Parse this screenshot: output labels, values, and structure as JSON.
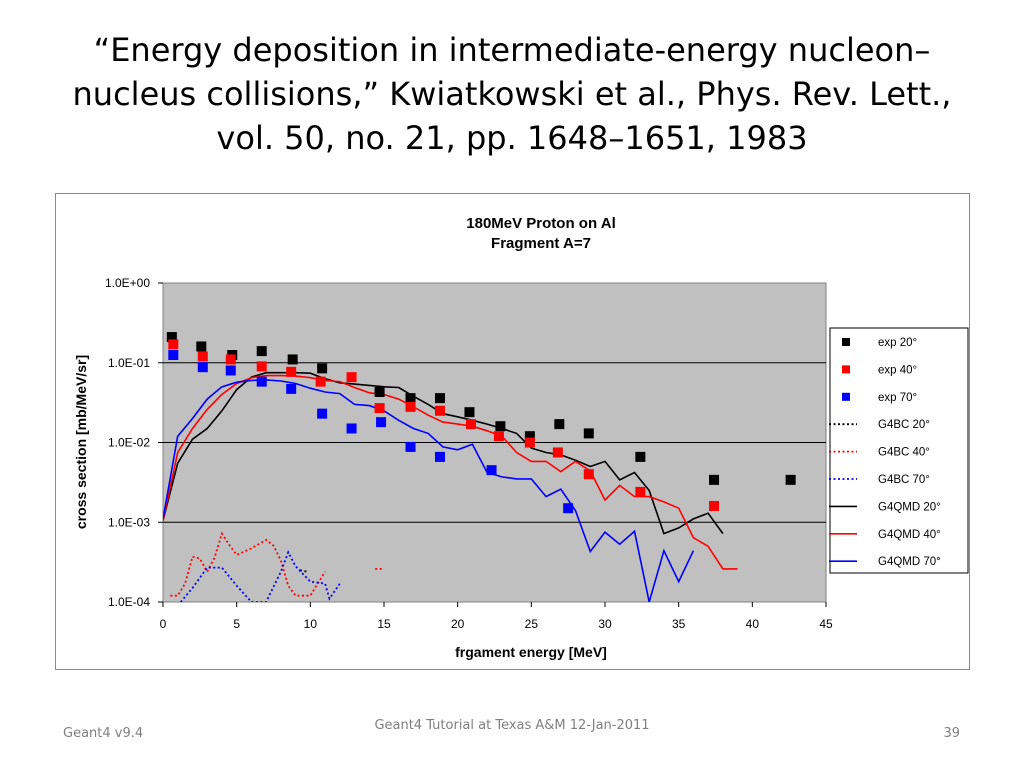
{
  "slide": {
    "title": "“Energy deposition in intermediate-energy nucleon–nucleus collisions,” Kwiatkowski et al., Phys. Rev. Lett., vol. 50, no. 21, pp. 1648–1651, 1983"
  },
  "footer": {
    "left": "Geant4 v9.4",
    "center": "Geant4 Tutorial at Texas A&M 12-Jan-2011",
    "right": "39"
  },
  "chart_data": {
    "type": "scatter",
    "title": "180MeV Proton on Al",
    "subtitle": "Fragment A=7",
    "xlabel": "frgament energy [MeV]",
    "ylabel": "cross section [mb/MeV/sr]",
    "xlim": [
      0,
      45
    ],
    "ylim": [
      0.0001,
      1
    ],
    "y_scale": "log",
    "x_ticks": [
      0,
      5,
      10,
      15,
      20,
      25,
      30,
      35,
      40,
      45
    ],
    "y_ticks": [
      0.0001,
      0.001,
      0.01,
      0.1,
      1
    ],
    "x_tick_labels": [
      "0",
      "5",
      "10",
      "15",
      "20",
      "25",
      "30",
      "35",
      "40",
      "45"
    ],
    "y_tick_labels": [
      "1.0E-04",
      "1.0E-03",
      "1.0E-02",
      "1.0E-01",
      "1.0E+00"
    ],
    "grid": "horizontal",
    "plot_background": "#c0c0c0",
    "legend_position": "right",
    "series": [
      {
        "name": "exp 20°",
        "kind": "marker",
        "color": "#000000",
        "points": [
          [
            0.6,
            0.21
          ],
          [
            2.6,
            0.16
          ],
          [
            4.7,
            0.125
          ],
          [
            6.7,
            0.14
          ],
          [
            8.8,
            0.11
          ],
          [
            10.8,
            0.085
          ],
          [
            14.7,
            0.043
          ],
          [
            16.8,
            0.036
          ],
          [
            18.8,
            0.036
          ],
          [
            20.8,
            0.024
          ],
          [
            22.9,
            0.016
          ],
          [
            24.9,
            0.012
          ],
          [
            26.9,
            0.017
          ],
          [
            28.9,
            0.013
          ],
          [
            32.4,
            0.0066
          ],
          [
            37.4,
            0.0034
          ],
          [
            42.6,
            0.0034
          ]
        ]
      },
      {
        "name": "exp 40°",
        "kind": "marker",
        "color": "#ff0000",
        "points": [
          [
            0.7,
            0.17
          ],
          [
            2.7,
            0.12
          ],
          [
            4.6,
            0.11
          ],
          [
            6.7,
            0.09
          ],
          [
            8.7,
            0.077
          ],
          [
            10.7,
            0.058
          ],
          [
            12.8,
            0.066
          ],
          [
            14.7,
            0.027
          ],
          [
            16.8,
            0.028
          ],
          [
            18.8,
            0.025
          ],
          [
            20.9,
            0.017
          ],
          [
            22.8,
            0.012
          ],
          [
            24.9,
            0.01
          ],
          [
            26.8,
            0.0075
          ],
          [
            28.9,
            0.004
          ],
          [
            32.4,
            0.0024
          ],
          [
            37.4,
            0.0016
          ]
        ]
      },
      {
        "name": "exp 70°",
        "kind": "marker",
        "color": "#0000ff",
        "points": [
          [
            0.7,
            0.125
          ],
          [
            2.7,
            0.088
          ],
          [
            4.6,
            0.08
          ],
          [
            6.7,
            0.058
          ],
          [
            8.7,
            0.047
          ],
          [
            10.8,
            0.023
          ],
          [
            12.8,
            0.015
          ],
          [
            14.8,
            0.018
          ],
          [
            16.8,
            0.0088
          ],
          [
            18.8,
            0.0066
          ],
          [
            22.3,
            0.0045
          ],
          [
            27.5,
            0.0015
          ]
        ]
      },
      {
        "name": "G4BC 20°",
        "kind": "dotted",
        "color": "#000000",
        "points": [
          [
            9.3,
            0.00025
          ],
          [
            9.8,
            0.00024
          ]
        ]
      },
      {
        "name": "G4BC 40°",
        "kind": "dotted",
        "color": "#ff0000",
        "points": [
          [
            0.5,
            0.00012
          ],
          [
            1,
            0.00012
          ],
          [
            1.5,
            0.00017
          ],
          [
            2,
            0.00037
          ],
          [
            2.5,
            0.00035
          ],
          [
            3,
            0.00024
          ],
          [
            3.5,
            0.00036
          ],
          [
            4,
            0.00072
          ],
          [
            4.5,
            0.00052
          ],
          [
            5,
            0.00039
          ],
          [
            6,
            0.00047
          ],
          [
            7,
            0.0006
          ],
          [
            7.5,
            0.00051
          ],
          [
            8,
            0.00033
          ],
          [
            8.5,
            0.00016
          ],
          [
            9,
            0.00012
          ],
          [
            10,
            0.00012
          ],
          [
            10.5,
            0.00017
          ],
          [
            11,
            0.00024
          ]
        ]
      },
      {
        "name": "G4BC 40° (15 MeV)",
        "kind": "dotted",
        "color": "#ff0000",
        "legend": false,
        "points": [
          [
            14.4,
            0.00026
          ],
          [
            15,
            0.00026
          ]
        ]
      },
      {
        "name": "G4BC 70°",
        "kind": "dotted",
        "color": "#0000ff",
        "points": [
          [
            1.2,
            0.0001
          ],
          [
            2,
            0.00015
          ],
          [
            3,
            0.00027
          ],
          [
            4,
            0.00027
          ],
          [
            5,
            0.00016
          ],
          [
            6,
            0.0001
          ],
          [
            7,
            0.0001
          ],
          [
            8,
            0.00024
          ],
          [
            8.5,
            0.00042
          ],
          [
            9,
            0.00028
          ],
          [
            10,
            0.00018
          ],
          [
            11,
            0.00017
          ],
          [
            11.3,
            0.00011
          ],
          [
            12,
            0.00017
          ]
        ]
      },
      {
        "name": "G4QMD 20°",
        "kind": "line",
        "color": "#000000",
        "points": [
          [
            0,
            0.00105
          ],
          [
            1,
            0.0055
          ],
          [
            2,
            0.011
          ],
          [
            3,
            0.015
          ],
          [
            4,
            0.025
          ],
          [
            5,
            0.046
          ],
          [
            6,
            0.066
          ],
          [
            7,
            0.075
          ],
          [
            8,
            0.075
          ],
          [
            9,
            0.075
          ],
          [
            10,
            0.074
          ],
          [
            11,
            0.063
          ],
          [
            12,
            0.056
          ],
          [
            13,
            0.054
          ],
          [
            14,
            0.052
          ],
          [
            15,
            0.05
          ],
          [
            16,
            0.049
          ],
          [
            17,
            0.038
          ],
          [
            18,
            0.03
          ],
          [
            19,
            0.023
          ],
          [
            20,
            0.021
          ],
          [
            21,
            0.019
          ],
          [
            22,
            0.017
          ],
          [
            23,
            0.015
          ],
          [
            24,
            0.013
          ],
          [
            25,
            0.0085
          ],
          [
            26,
            0.0075
          ],
          [
            27,
            0.007
          ],
          [
            28,
            0.006
          ],
          [
            29,
            0.005
          ],
          [
            30,
            0.0058
          ],
          [
            31,
            0.0034
          ],
          [
            32,
            0.0042
          ],
          [
            33,
            0.0025
          ],
          [
            34,
            0.00072
          ],
          [
            35,
            0.00085
          ],
          [
            36,
            0.0011
          ],
          [
            37,
            0.0013
          ],
          [
            38,
            0.00072
          ]
        ]
      },
      {
        "name": "G4QMD 40°",
        "kind": "line",
        "color": "#ff0000",
        "points": [
          [
            0,
            0.00105
          ],
          [
            1,
            0.0075
          ],
          [
            2,
            0.015
          ],
          [
            3,
            0.026
          ],
          [
            4,
            0.04
          ],
          [
            5,
            0.055
          ],
          [
            6,
            0.065
          ],
          [
            7,
            0.069
          ],
          [
            8,
            0.069
          ],
          [
            9,
            0.068
          ],
          [
            10,
            0.065
          ],
          [
            11,
            0.06
          ],
          [
            12,
            0.058
          ],
          [
            13,
            0.049
          ],
          [
            14,
            0.042
          ],
          [
            15,
            0.04
          ],
          [
            16,
            0.035
          ],
          [
            17,
            0.028
          ],
          [
            18,
            0.022
          ],
          [
            19,
            0.018
          ],
          [
            20,
            0.017
          ],
          [
            21,
            0.016
          ],
          [
            22,
            0.014
          ],
          [
            23,
            0.012
          ],
          [
            24,
            0.0075
          ],
          [
            25,
            0.0058
          ],
          [
            26,
            0.0058
          ],
          [
            27,
            0.0043
          ],
          [
            28,
            0.0058
          ],
          [
            29,
            0.0044
          ],
          [
            30,
            0.0019
          ],
          [
            31,
            0.0029
          ],
          [
            32,
            0.0021
          ],
          [
            33,
            0.0021
          ],
          [
            34,
            0.0018
          ],
          [
            35,
            0.0015
          ],
          [
            36,
            0.00064
          ],
          [
            37,
            0.0005
          ],
          [
            38,
            0.00026
          ],
          [
            39,
            0.00026
          ]
        ]
      },
      {
        "name": "G4QMD 70°",
        "kind": "line",
        "color": "#0000ff",
        "points": [
          [
            0,
            0.0011
          ],
          [
            1,
            0.012
          ],
          [
            2,
            0.02
          ],
          [
            3,
            0.035
          ],
          [
            4,
            0.05
          ],
          [
            5,
            0.057
          ],
          [
            6,
            0.06
          ],
          [
            7,
            0.061
          ],
          [
            8,
            0.059
          ],
          [
            9,
            0.055
          ],
          [
            10,
            0.048
          ],
          [
            11,
            0.043
          ],
          [
            12,
            0.041
          ],
          [
            13,
            0.03
          ],
          [
            14,
            0.029
          ],
          [
            15,
            0.025
          ],
          [
            16,
            0.019
          ],
          [
            17,
            0.015
          ],
          [
            18,
            0.013
          ],
          [
            19,
            0.0088
          ],
          [
            20,
            0.0081
          ],
          [
            21,
            0.0095
          ],
          [
            22,
            0.0042
          ],
          [
            23,
            0.0037
          ],
          [
            24,
            0.0035
          ],
          [
            25,
            0.0035
          ],
          [
            26,
            0.0021
          ],
          [
            27,
            0.0026
          ],
          [
            28,
            0.0014
          ],
          [
            29,
            0.00043
          ],
          [
            30,
            0.00075
          ],
          [
            31,
            0.00053
          ],
          [
            32,
            0.00077
          ],
          [
            33,
            0.0001
          ],
          [
            34,
            0.00044
          ],
          [
            35,
            0.00018
          ],
          [
            36,
            0.00044
          ]
        ]
      }
    ]
  }
}
